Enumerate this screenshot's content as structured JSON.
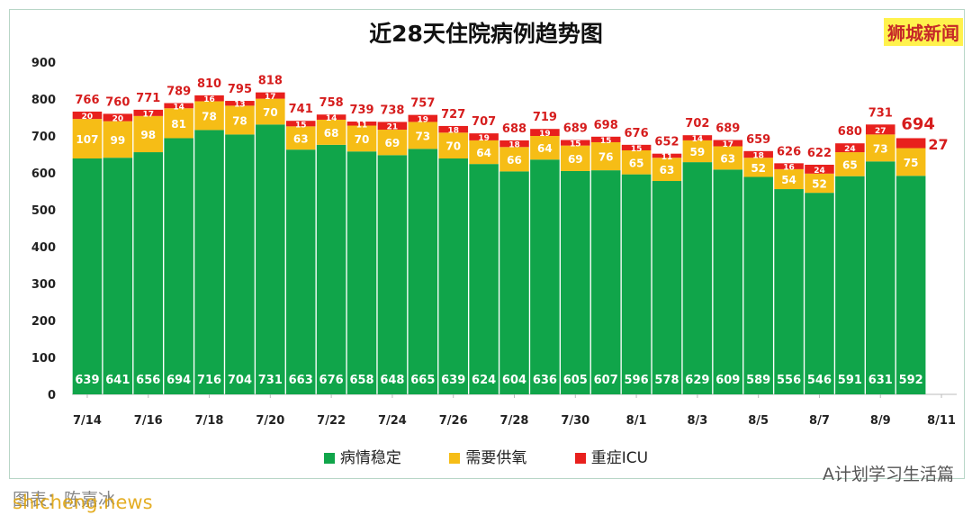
{
  "brand": "狮城新闻",
  "watermark": "A计划学习生活篇",
  "source_text": "图表：陈嘉冰",
  "source_watermark": "shicheng.news",
  "colors": {
    "stable": "#10a54a",
    "oxygen": "#f6bd16",
    "icu": "#e8201d"
  },
  "chart_data": {
    "type": "bar",
    "title": "近28天住院病例趋势图",
    "categories": [
      "7/14",
      "7/15",
      "7/16",
      "7/17",
      "7/18",
      "7/19",
      "7/20",
      "7/21",
      "7/22",
      "7/23",
      "7/24",
      "7/25",
      "7/26",
      "7/27",
      "7/28",
      "7/29",
      "7/30",
      "7/31",
      "8/1",
      "8/2",
      "8/3",
      "8/4",
      "8/5",
      "8/6",
      "8/7",
      "8/8",
      "8/9",
      "8/10",
      "8/11"
    ],
    "x_tick_labels": [
      "7/14",
      "7/16",
      "7/18",
      "7/20",
      "7/22",
      "7/24",
      "7/26",
      "7/28",
      "7/30",
      "8/1",
      "8/3",
      "8/5",
      "8/7",
      "8/9",
      "8/11"
    ],
    "y_ticks": [
      0,
      100,
      200,
      300,
      400,
      500,
      600,
      700,
      800,
      900
    ],
    "ylim": [
      0,
      900
    ],
    "series": [
      {
        "name": "病情稳定",
        "values": [
          639,
          641,
          656,
          694,
          716,
          704,
          731,
          663,
          676,
          658,
          648,
          665,
          639,
          624,
          604,
          636,
          605,
          607,
          596,
          578,
          629,
          609,
          589,
          556,
          546,
          591,
          631,
          592,
          null
        ]
      },
      {
        "name": "需要供氧",
        "values": [
          107,
          99,
          98,
          81,
          78,
          78,
          70,
          63,
          68,
          70,
          69,
          73,
          70,
          64,
          66,
          64,
          69,
          76,
          65,
          63,
          59,
          63,
          52,
          54,
          52,
          65,
          73,
          75,
          null
        ]
      },
      {
        "name": "重症ICU",
        "values": [
          20,
          20,
          17,
          14,
          16,
          13,
          17,
          15,
          14,
          11,
          21,
          19,
          18,
          19,
          18,
          19,
          15,
          15,
          15,
          11,
          14,
          17,
          18,
          16,
          24,
          24,
          27,
          27,
          null
        ]
      }
    ],
    "totals": [
      766,
      760,
      771,
      789,
      810,
      795,
      818,
      741,
      758,
      739,
      738,
      757,
      727,
      707,
      688,
      719,
      689,
      698,
      676,
      652,
      702,
      689,
      659,
      626,
      622,
      680,
      731,
      694,
      null
    ],
    "legend_position": "bottom",
    "grid": false
  }
}
